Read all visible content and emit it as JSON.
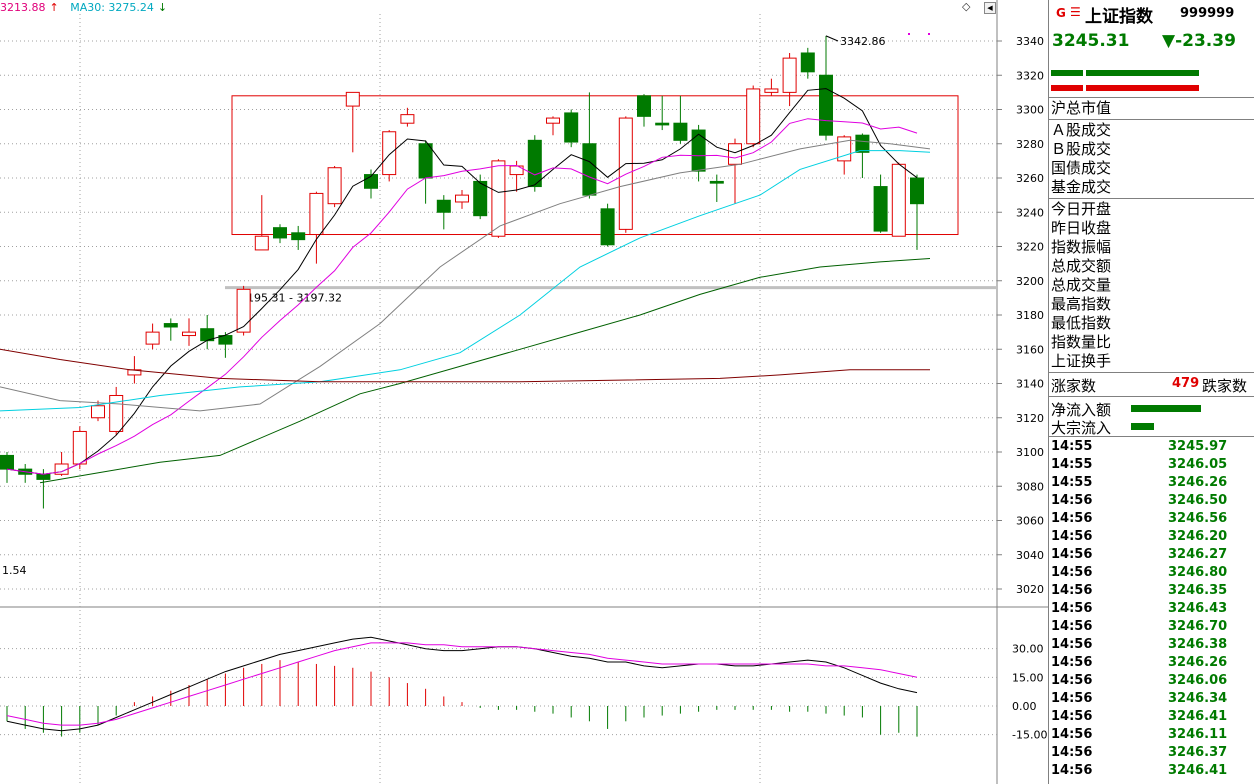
{
  "legend": {
    "ma20_label": "3213.88",
    "ma20_arrow": "↑",
    "ma30_label": "MA30: 3275.24",
    "ma30_arrow": "↓"
  },
  "chart": {
    "high_annotation": "3342.86",
    "mid_annotation": "3195.31 - 3197.32",
    "low_annotation": "1.54",
    "price_ticks": [
      "3340",
      "3320",
      "3300",
      "3280",
      "3260",
      "3240",
      "3220",
      "3200",
      "3180",
      "3160",
      "3140",
      "3120",
      "3100",
      "3080",
      "3060",
      "3040",
      "3020"
    ],
    "ind_ticks": [
      "30.00",
      "15.00",
      "0.00",
      "-15.00"
    ],
    "colors": {
      "up": "#e00000",
      "down": "#007a00",
      "ma5": "#000000",
      "ma10": "#e000e0",
      "ma20": "#808080",
      "ma30": "#00d0e0",
      "ma60": "#006000",
      "ma120": "#800000"
    }
  },
  "chart_data": {
    "type": "candlestick",
    "ylim": [
      3010,
      3350
    ],
    "candles": [
      [
        3098,
        3090,
        3100,
        3082
      ],
      [
        3090,
        3087,
        3093,
        3082
      ],
      [
        3087,
        3084,
        3090,
        3067
      ],
      [
        3087,
        3093,
        3100,
        3086
      ],
      [
        3093,
        3112,
        3115,
        3090
      ],
      [
        3120,
        3127,
        3130,
        3118
      ],
      [
        3112,
        3133,
        3138,
        3110
      ],
      [
        3145,
        3148,
        3156,
        3140
      ],
      [
        3163,
        3170,
        3175,
        3160
      ],
      [
        3175,
        3173,
        3178,
        3165
      ],
      [
        3168,
        3170,
        3178,
        3162
      ],
      [
        3172,
        3165,
        3180,
        3160
      ],
      [
        3168,
        3163,
        3170,
        3155
      ],
      [
        3170,
        3195,
        3197,
        3168
      ],
      [
        3218,
        3226,
        3250,
        3218
      ],
      [
        3231,
        3225,
        3233,
        3222
      ],
      [
        3228,
        3224,
        3232,
        3218
      ],
      [
        3227,
        3251,
        3252,
        3210
      ],
      [
        3245,
        3266,
        3267,
        3243
      ],
      [
        3302,
        3310,
        3310,
        3275
      ],
      [
        3262,
        3254,
        3265,
        3248
      ],
      [
        3262,
        3287,
        3288,
        3258
      ],
      [
        3292,
        3297,
        3301,
        3290
      ],
      [
        3280,
        3260,
        3282,
        3245
      ],
      [
        3247,
        3240,
        3250,
        3230
      ],
      [
        3246,
        3250,
        3253,
        3242
      ],
      [
        3258,
        3238,
        3262,
        3236
      ],
      [
        3226,
        3270,
        3271,
        3225
      ],
      [
        3262,
        3267,
        3270,
        3252
      ],
      [
        3282,
        3255,
        3285,
        3252
      ],
      [
        3292,
        3295,
        3296,
        3285
      ],
      [
        3298,
        3281,
        3300,
        3278
      ],
      [
        3280,
        3250,
        3310,
        3248
      ],
      [
        3242,
        3221,
        3245,
        3220
      ],
      [
        3230,
        3295,
        3296,
        3228
      ],
      [
        3308,
        3296,
        3309,
        3290
      ],
      [
        3292,
        3291,
        3308,
        3288
      ],
      [
        3292,
        3282,
        3308,
        3280
      ],
      [
        3288,
        3264,
        3291,
        3258
      ],
      [
        3258,
        3257,
        3262,
        3246
      ],
      [
        3268,
        3280,
        3283,
        3245
      ],
      [
        3280,
        3312,
        3314,
        3278
      ],
      [
        3310,
        3312,
        3318,
        3308
      ],
      [
        3310,
        3330,
        3333,
        3302
      ],
      [
        3333,
        3322,
        3336,
        3318
      ],
      [
        3320,
        3285,
        3343,
        3282
      ],
      [
        3270,
        3284,
        3285,
        3262
      ],
      [
        3285,
        3275,
        3286,
        3260
      ],
      [
        3255,
        3229,
        3262,
        3228
      ],
      [
        3226,
        3268,
        3269,
        3226
      ],
      [
        3260,
        3245,
        3262,
        3218
      ]
    ]
  },
  "panel": {
    "g_label": "G",
    "menu_label": "☰",
    "index_name": "上证指数",
    "index_code": "999999",
    "price": "3245.31",
    "change": "▼-23.39",
    "sect1": [
      "沪总市值"
    ],
    "sect2": [
      "Ａ股成交",
      "Ｂ股成交",
      "国债成交",
      "基金成交"
    ],
    "sect3": [
      "今日开盘",
      "昨日收盘",
      "指数振幅",
      "总成交额",
      "总成交量",
      "最高指数",
      "最低指数",
      "指数量比",
      "上证换手"
    ],
    "rise_label": "涨家数",
    "rise_value": "479",
    "fall_label": "跌家数",
    "net_inflow_label": "净流入额",
    "block_inflow_label": "大宗流入",
    "ticks": [
      {
        "time": "14:55",
        "value": "3245.97"
      },
      {
        "time": "14:55",
        "value": "3246.05"
      },
      {
        "time": "14:55",
        "value": "3246.26"
      },
      {
        "time": "14:56",
        "value": "3246.50"
      },
      {
        "time": "14:56",
        "value": "3246.56"
      },
      {
        "time": "14:56",
        "value": "3246.20"
      },
      {
        "time": "14:56",
        "value": "3246.27"
      },
      {
        "time": "14:56",
        "value": "3246.80"
      },
      {
        "time": "14:56",
        "value": "3246.35"
      },
      {
        "time": "14:56",
        "value": "3246.43"
      },
      {
        "time": "14:56",
        "value": "3246.70"
      },
      {
        "time": "14:56",
        "value": "3246.38"
      },
      {
        "time": "14:56",
        "value": "3246.26"
      },
      {
        "time": "14:56",
        "value": "3246.06"
      },
      {
        "time": "14:56",
        "value": "3246.34"
      },
      {
        "time": "14:56",
        "value": "3246.41"
      },
      {
        "time": "14:56",
        "value": "3246.11"
      },
      {
        "time": "14:56",
        "value": "3246.37"
      },
      {
        "time": "14:56",
        "value": "3246.41"
      }
    ]
  }
}
